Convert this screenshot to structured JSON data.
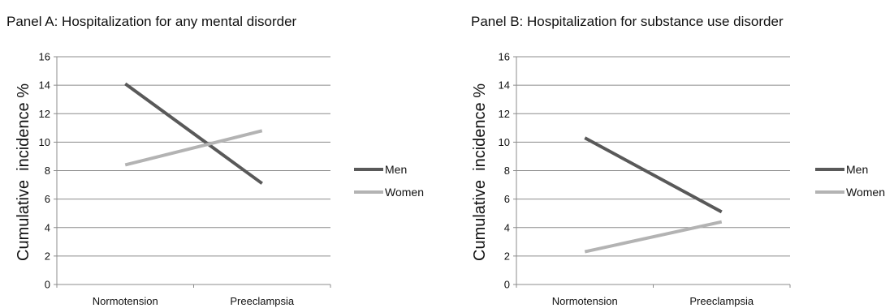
{
  "chart_data": [
    {
      "type": "line",
      "title": "Panel A: Hospitalization for any mental disorder",
      "ylabel": "Cumulative  incidence %",
      "xlabel": "",
      "categories": [
        "Normotension",
        "Preeclampsia"
      ],
      "ylim": [
        0,
        16
      ],
      "yticks": [
        0,
        2,
        4,
        6,
        8,
        10,
        12,
        14,
        16
      ],
      "grid": true,
      "legend": "right",
      "series": [
        {
          "name": "Men",
          "values": [
            14.1,
            7.1
          ],
          "color": "#595959"
        },
        {
          "name": "Women",
          "values": [
            8.4,
            10.8
          ],
          "color": "#b3b3b3"
        }
      ]
    },
    {
      "type": "line",
      "title": "Panel B: Hospitalization for substance use disorder",
      "ylabel": "Cumulative  incidence %",
      "xlabel": "",
      "categories": [
        "Normotension",
        "Preeclampsia"
      ],
      "ylim": [
        0,
        16
      ],
      "yticks": [
        0,
        2,
        4,
        6,
        8,
        10,
        12,
        14,
        16
      ],
      "grid": true,
      "legend": "right",
      "series": [
        {
          "name": "Men",
          "values": [
            10.3,
            5.1
          ],
          "color": "#595959"
        },
        {
          "name": "Women",
          "values": [
            2.3,
            4.4
          ],
          "color": "#b3b3b3"
        }
      ]
    }
  ]
}
